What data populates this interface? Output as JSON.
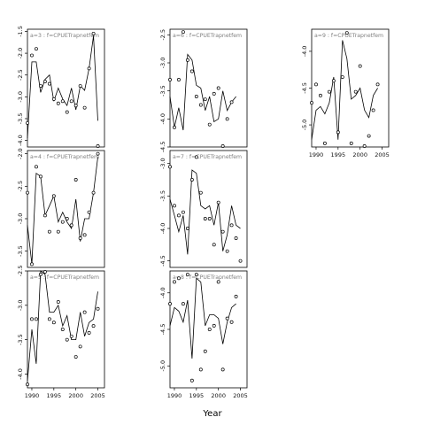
{
  "chart_data": {
    "type": "line",
    "xlabel": "Year",
    "x_ticks": [
      1990,
      1995,
      2000,
      2005
    ],
    "xlim": [
      1989,
      2006.5
    ],
    "panels": [
      {
        "label": "a=3 : f=CPUETrapnetfem",
        "ylim": [
          -4.15,
          -1.45
        ],
        "yticks": [
          -1.5,
          -2.0,
          -2.5,
          -3.0,
          -3.5,
          -4.0
        ],
        "years": [
          1989,
          1990,
          1991,
          1992,
          1993,
          1994,
          1995,
          1996,
          1997,
          1998,
          1999,
          2000,
          2001,
          2002,
          2003,
          2004,
          2005,
          2006
        ],
        "line": [
          -3.95,
          -2.2,
          -2.2,
          -2.9,
          -2.6,
          -2.5,
          -3.1,
          -2.8,
          -3.05,
          -3.2,
          -2.8,
          -3.3,
          -2.75,
          -2.85,
          -2.35,
          -1.6,
          -3.55,
          null
        ],
        "points": [
          -3.6,
          -2.05,
          -1.9,
          -2.75,
          -2.65,
          -2.7,
          -3.05,
          -3.15,
          -3.1,
          -3.35,
          -3.1,
          -3.2,
          -2.75,
          -3.25,
          -2.35,
          -1.55,
          -4.2,
          null
        ]
      },
      {
        "label": "a=6 : f=CPUETrapnetfem",
        "ylim": [
          -4.5,
          -2.4
        ],
        "yticks": [
          -2.5,
          -3.0,
          -3.5,
          -4.0,
          -4.5
        ],
        "years": [
          1989,
          1990,
          1991,
          1992,
          1993,
          1994,
          1995,
          1996,
          1997,
          1998,
          1999,
          2000,
          2001,
          2002,
          2003,
          2004,
          2005,
          2006
        ],
        "line": [
          -3.6,
          -4.15,
          -3.8,
          -4.2,
          -2.85,
          -2.95,
          -3.4,
          -3.45,
          -3.85,
          -3.6,
          -4.05,
          -4.0,
          -3.5,
          -3.85,
          -3.7,
          -3.6,
          null,
          null
        ],
        "points": [
          -3.3,
          -4.15,
          -3.3,
          -2.45,
          -2.95,
          -3.15,
          -3.6,
          -3.75,
          -3.65,
          -4.1,
          -3.55,
          -3.45,
          -4.5,
          -4.0,
          -3.7,
          null,
          null,
          null
        ]
      },
      {
        "label": "a=9 : f=CPUETrapnetfem",
        "ylim": [
          -5.3,
          -3.7
        ],
        "yticks": [
          -4.0,
          -4.5,
          -5.0
        ],
        "years": [
          1989,
          1990,
          1991,
          1992,
          1993,
          1994,
          1995,
          1996,
          1997,
          1998,
          1999,
          2000,
          2001,
          2002,
          2003,
          2004,
          2005,
          2006
        ],
        "line": [
          -5.2,
          -4.8,
          -4.75,
          -4.85,
          -4.7,
          -4.35,
          -5.2,
          -3.85,
          -4.1,
          -4.65,
          -4.6,
          -4.5,
          -4.8,
          -4.9,
          -4.6,
          -4.5,
          null,
          null
        ],
        "points": [
          -4.7,
          -4.45,
          -4.6,
          -5.25,
          -4.55,
          -4.4,
          -5.1,
          -4.35,
          -3.75,
          -5.25,
          -4.55,
          -4.2,
          -5.35,
          -5.15,
          -4.8,
          -4.45,
          null,
          null
        ]
      },
      {
        "label": "a=4 : f=CPUETrapnetfem",
        "ylim": [
          -3.75,
          -1.95
        ],
        "yticks": [
          -2.0,
          -2.5,
          -3.0,
          -3.5
        ],
        "years": [
          1989,
          1990,
          1991,
          1992,
          1993,
          1994,
          1995,
          1996,
          1997,
          1998,
          1999,
          2000,
          2001,
          2002,
          2003,
          2004,
          2005,
          2006
        ],
        "line": [
          -3.1,
          -3.7,
          -2.3,
          -2.35,
          -2.95,
          -2.8,
          -2.65,
          -3.05,
          -2.9,
          -3.05,
          -3.15,
          -2.7,
          -3.35,
          -3.0,
          -3.0,
          -2.6,
          -2.05,
          null
        ],
        "points": [
          -2.6,
          -3.7,
          -2.2,
          -2.35,
          -2.95,
          -3.2,
          -2.65,
          -3.2,
          -3.05,
          -3.0,
          -3.1,
          -2.4,
          -3.3,
          -3.25,
          -2.9,
          -2.6,
          -2.0,
          null
        ]
      },
      {
        "label": "a=7 : f=CPUETrapnetfem",
        "ylim": [
          -4.6,
          -2.8
        ],
        "yticks": [
          -3.0,
          -3.5,
          -4.0,
          -4.5
        ],
        "years": [
          1989,
          1990,
          1991,
          1992,
          1993,
          1994,
          1995,
          1996,
          1997,
          1998,
          1999,
          2000,
          2001,
          2002,
          2003,
          2004,
          2005,
          2006
        ],
        "line": [
          -3.55,
          -3.8,
          -4.05,
          -3.8,
          -4.4,
          -3.1,
          -3.15,
          -3.65,
          -3.7,
          -3.65,
          -3.95,
          -3.6,
          -4.35,
          -4.1,
          -3.65,
          -3.95,
          -4.0,
          null
        ],
        "points": [
          -3.05,
          -3.65,
          -3.8,
          -3.75,
          -4.0,
          -3.25,
          -2.9,
          -3.45,
          -3.85,
          -3.85,
          -4.25,
          -3.6,
          -4.05,
          -4.35,
          -3.95,
          -4.15,
          -4.5,
          null
        ]
      },
      {
        "label": "a=5 : f=CPUETrapnetfem",
        "ylim": [
          -4.2,
          -2.5
        ],
        "yticks": [
          -2.5,
          -3.0,
          -3.5,
          -4.0
        ],
        "years": [
          1989,
          1990,
          1991,
          1992,
          1993,
          1994,
          1995,
          1996,
          1997,
          1998,
          1999,
          2000,
          2001,
          2002,
          2003,
          2004,
          2005,
          2006
        ],
        "line": [
          -4.1,
          -3.35,
          -3.85,
          -2.5,
          -2.55,
          -3.1,
          -3.1,
          -3.0,
          -3.3,
          -3.15,
          -3.5,
          -3.5,
          -3.1,
          -3.45,
          -3.25,
          -3.2,
          -2.8,
          null
        ],
        "points": [
          -4.15,
          -3.2,
          -3.2,
          -2.55,
          -2.35,
          -3.2,
          -3.25,
          -2.95,
          -3.35,
          -3.5,
          -3.45,
          -3.75,
          -3.6,
          -3.1,
          -3.4,
          -3.3,
          -3.05,
          null
        ]
      },
      {
        "label": "a=8 : f=CPUETrapnetfem",
        "ylim": [
          -5.3,
          -3.7
        ],
        "yticks": [
          -4.0,
          -4.5,
          -5.0
        ],
        "years": [
          1989,
          1990,
          1991,
          1992,
          1993,
          1994,
          1995,
          1996,
          1997,
          1998,
          1999,
          2000,
          2001,
          2002,
          2003,
          2004,
          2005,
          2006
        ],
        "line": [
          -4.45,
          -4.2,
          -4.25,
          -4.4,
          -4.1,
          -4.9,
          -3.8,
          -3.85,
          -4.45,
          -4.3,
          -4.3,
          -4.35,
          -4.7,
          -4.4,
          -4.2,
          -4.15,
          null,
          null
        ],
        "points": [
          -4.15,
          -3.85,
          -3.8,
          -4.15,
          -3.75,
          -5.2,
          -3.75,
          -5.05,
          -4.8,
          -4.5,
          -4.45,
          -3.85,
          -5.05,
          -4.35,
          -4.4,
          -4.05,
          null,
          null
        ]
      }
    ]
  }
}
